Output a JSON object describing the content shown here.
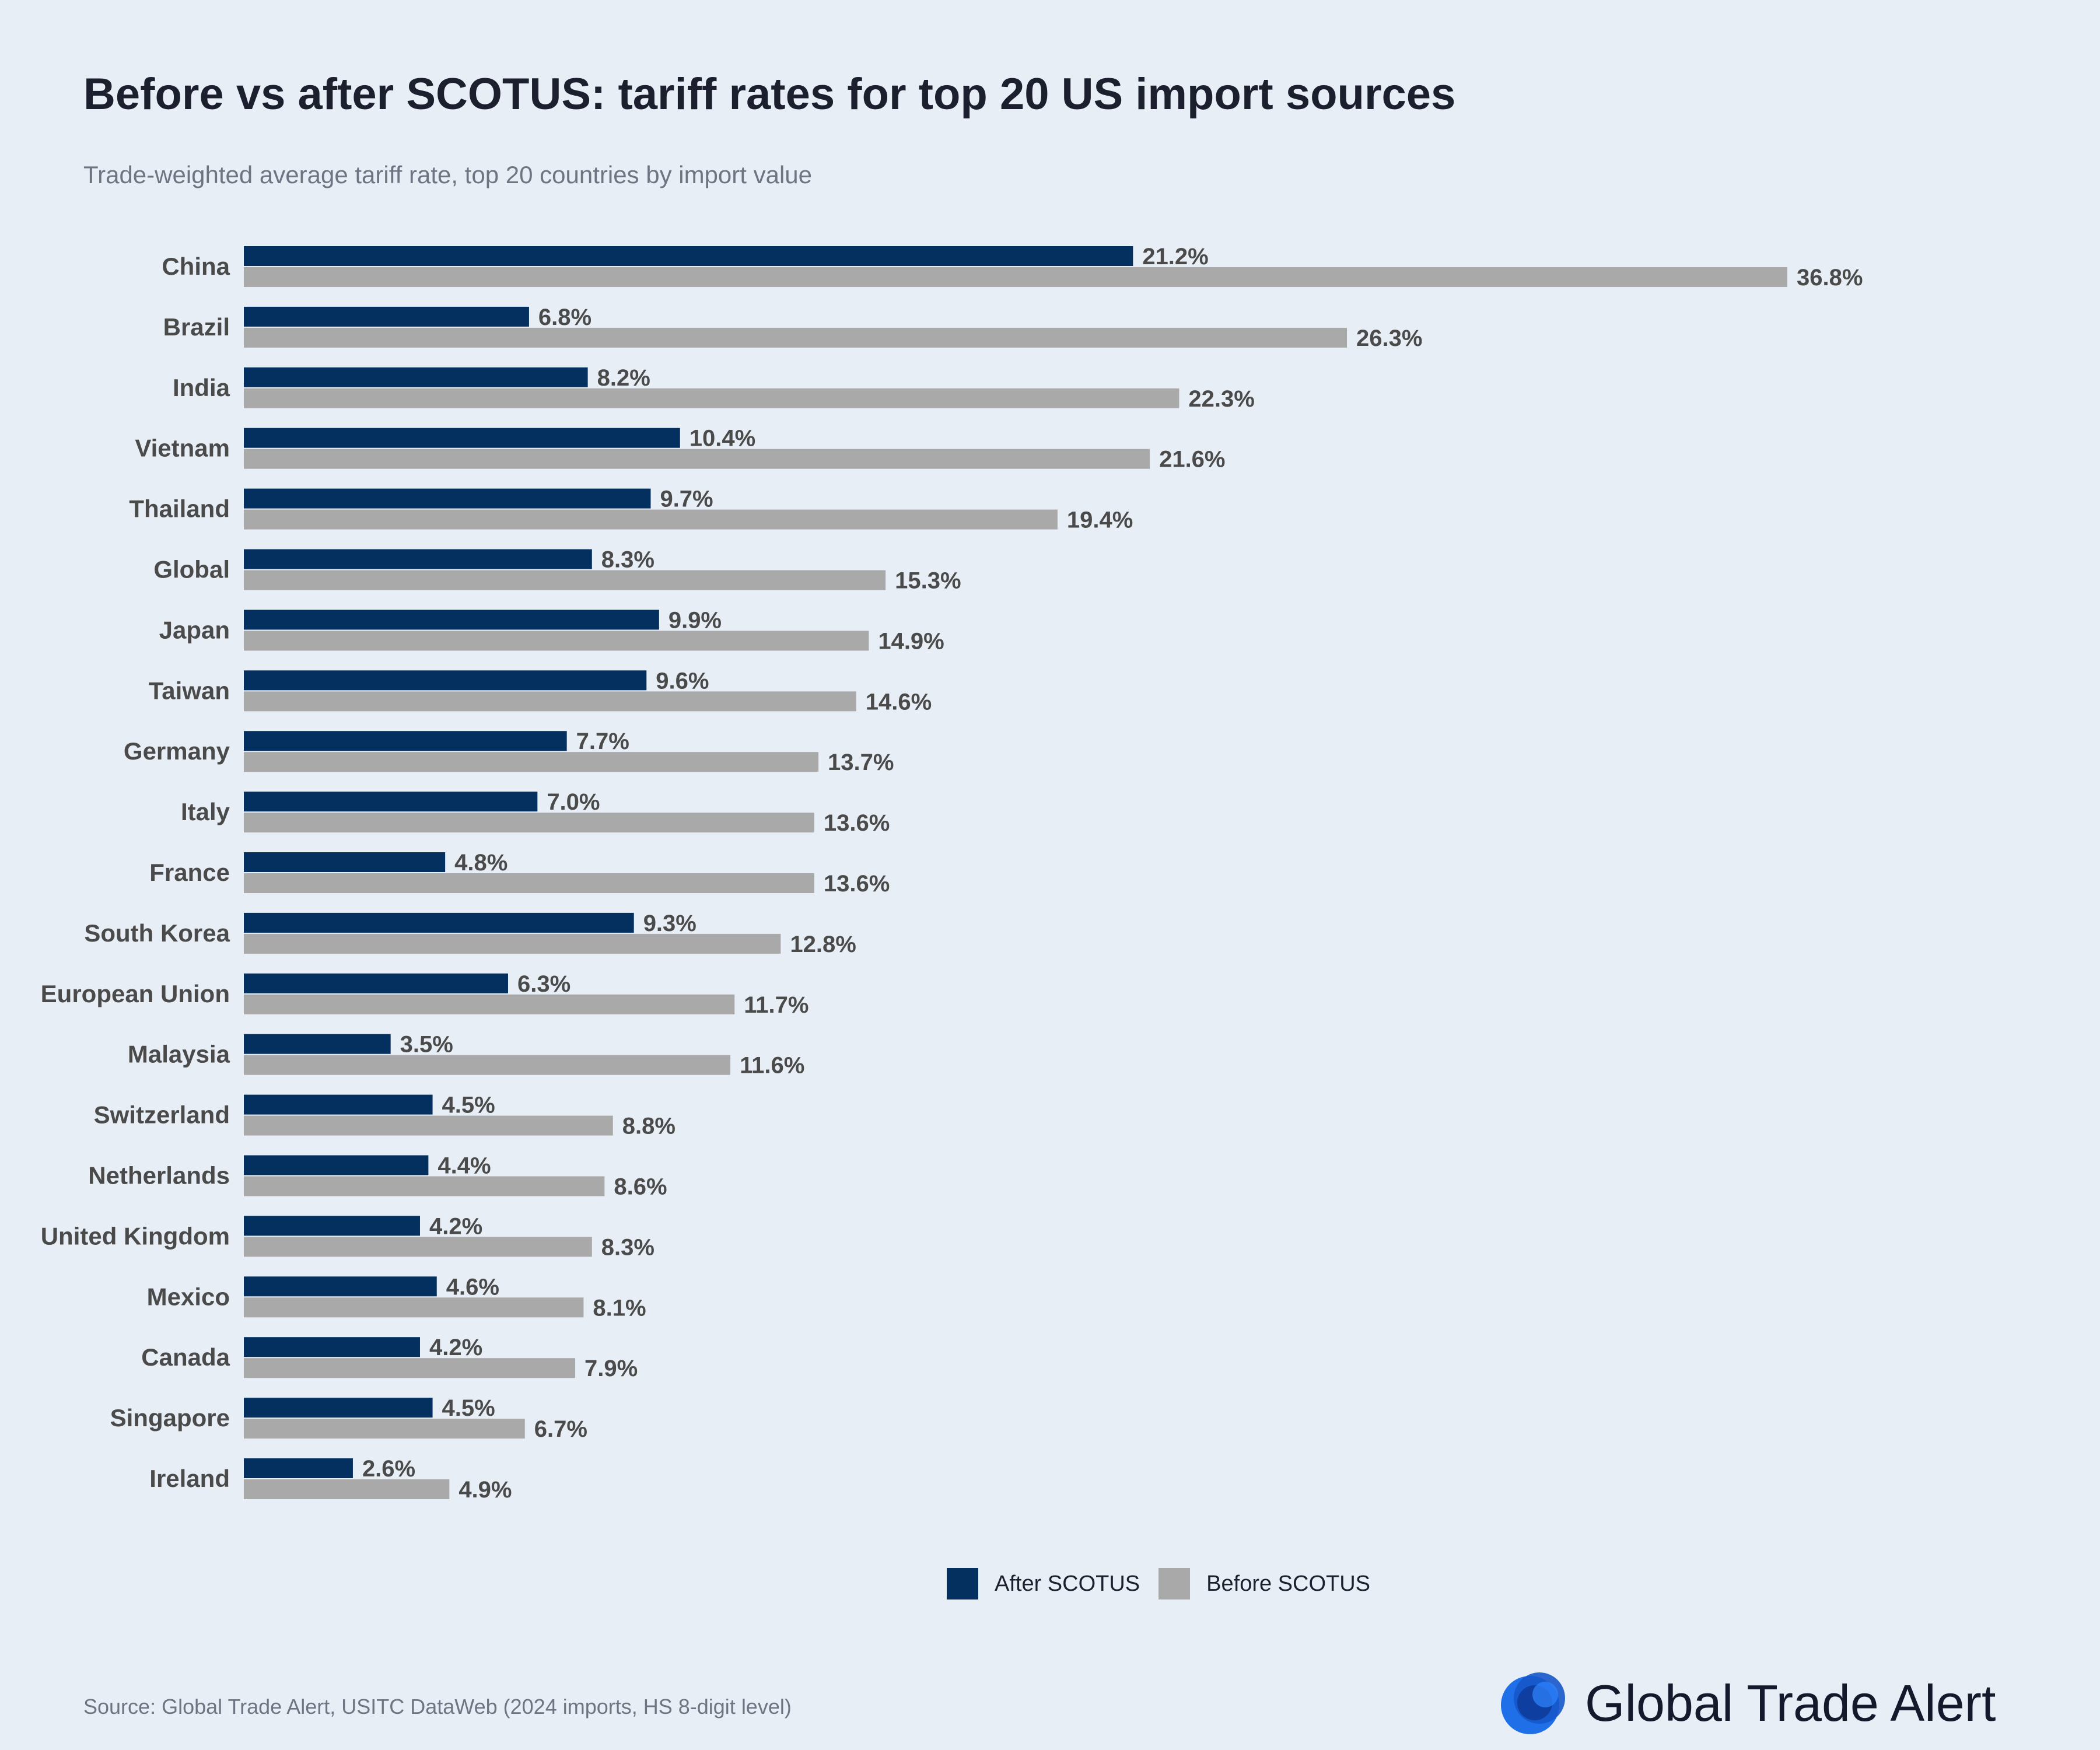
{
  "chart_data": {
    "type": "bar",
    "orientation": "horizontal",
    "title": "Before vs after SCOTUS: tariff rates for top 20 US import sources",
    "subtitle": "Trade-weighted average tariff rate, top 20 countries by import value",
    "categories": [
      "China",
      "Brazil",
      "India",
      "Vietnam",
      "Thailand",
      "Global",
      "Japan",
      "Taiwan",
      "Germany",
      "Italy",
      "France",
      "South Korea",
      "European Union",
      "Malaysia",
      "Switzerland",
      "Netherlands",
      "United Kingdom",
      "Mexico",
      "Canada",
      "Singapore",
      "Ireland"
    ],
    "series": [
      {
        "name": "After SCOTUS",
        "color": "#04305f",
        "values": [
          21.2,
          6.8,
          8.2,
          10.4,
          9.7,
          8.3,
          9.9,
          9.6,
          7.7,
          7.0,
          4.8,
          9.3,
          6.3,
          3.5,
          4.5,
          4.4,
          4.2,
          4.6,
          4.2,
          4.5,
          2.6
        ],
        "labels": [
          "21.2%",
          "6.8%",
          "8.2%",
          "10.4%",
          "9.7%",
          "8.3%",
          "9.9%",
          "9.6%",
          "7.7%",
          "7.0%",
          "4.8%",
          "9.3%",
          "6.3%",
          "3.5%",
          "4.5%",
          "4.4%",
          "4.2%",
          "4.6%",
          "4.2%",
          "4.5%",
          "2.6%"
        ]
      },
      {
        "name": "Before SCOTUS",
        "color": "#a9a9a9",
        "values": [
          36.8,
          26.3,
          22.3,
          21.6,
          19.4,
          15.3,
          14.9,
          14.6,
          13.7,
          13.6,
          13.6,
          12.8,
          11.7,
          11.6,
          8.8,
          8.6,
          8.3,
          8.1,
          7.9,
          6.7,
          4.9
        ],
        "labels": [
          "36.8%",
          "26.3%",
          "22.3%",
          "21.6%",
          "19.4%",
          "15.3%",
          "14.9%",
          "14.6%",
          "13.7%",
          "13.6%",
          "13.6%",
          "12.8%",
          "11.7%",
          "11.6%",
          "8.8%",
          "8.6%",
          "8.3%",
          "8.1%",
          "7.9%",
          "6.7%",
          "4.9%"
        ]
      }
    ],
    "xlim": [
      0,
      36.8
    ],
    "legend_position": "bottom-center",
    "grid": false,
    "xlabel": "",
    "ylabel": ""
  },
  "legend": {
    "after_label": "After SCOTUS",
    "before_label": "Before SCOTUS",
    "after_color": "#04305f",
    "before_color": "#a9a9a9"
  },
  "footer": {
    "source": "Source: Global Trade Alert, USITC DataWeb (2024 imports, HS 8-digit level)",
    "brand": "Global Trade Alert"
  },
  "colors": {
    "background": "#e8eef6",
    "label_text": "#4a4a4a",
    "title_text": "#1b1f2e"
  }
}
